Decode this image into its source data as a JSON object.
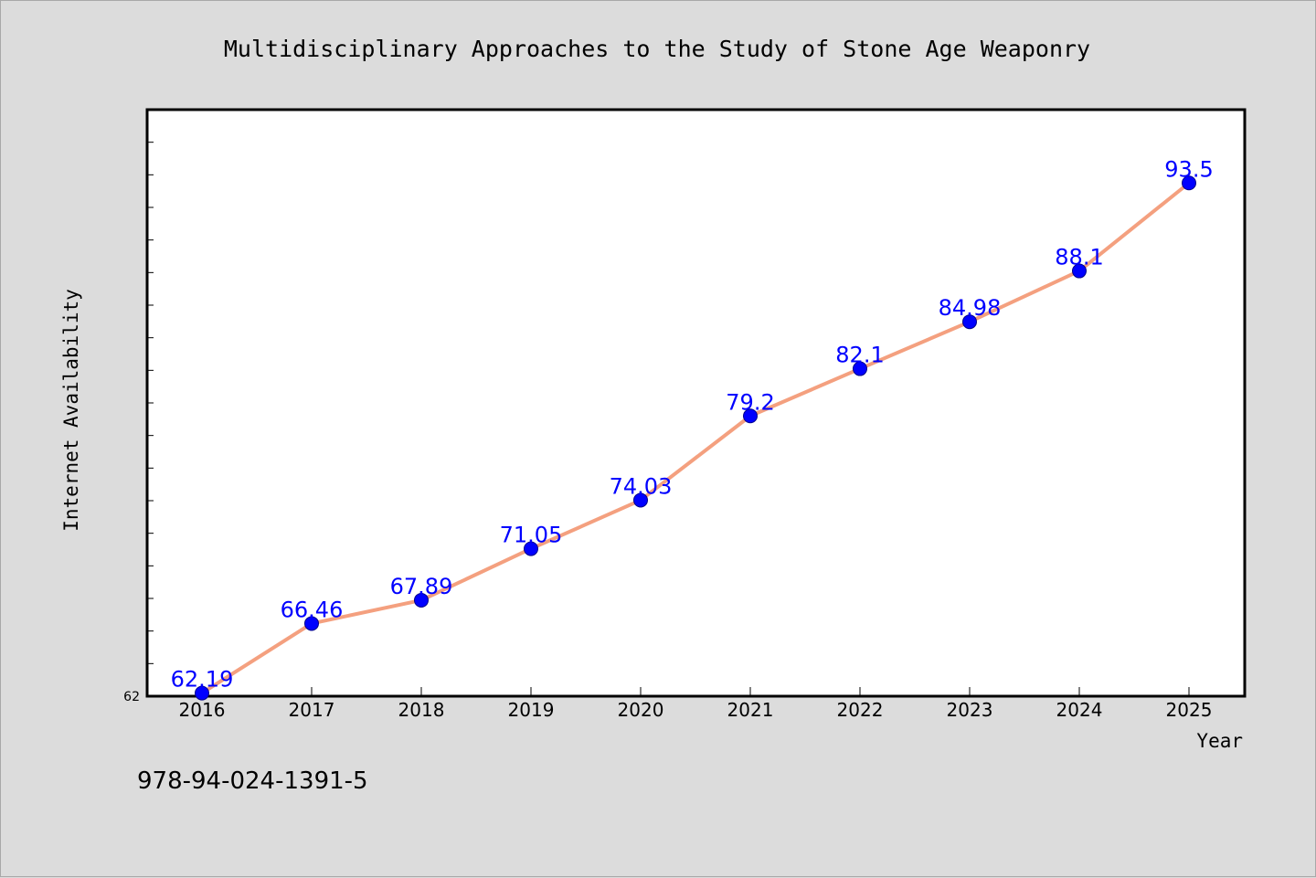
{
  "chart_data": {
    "type": "line",
    "title": "Multidisciplinary Approaches to the Study of Stone Age Weaponry",
    "xlabel": "Year",
    "ylabel": "Internet Availability",
    "x": [
      "2016",
      "2017",
      "2018",
      "2019",
      "2020",
      "2021",
      "2022",
      "2023",
      "2024",
      "2025"
    ],
    "series": [
      {
        "values": [
          62.19,
          66.46,
          67.89,
          71.05,
          74.03,
          79.2,
          82.1,
          84.98,
          88.1,
          93.5
        ],
        "labels": [
          "62.19",
          "66.46",
          "67.89",
          "71.05",
          "74.03",
          "79.2",
          "82.1",
          "84.98",
          "88.1",
          "93.5"
        ]
      }
    ],
    "ylim": [
      62,
      98
    ],
    "yticks": [
      "62"
    ],
    "grid": false,
    "line_color": "#f4a07f",
    "marker_color": "#0000ff",
    "label_color": "#0000ff"
  },
  "footer": {
    "isbn": "978-94-024-1391-5"
  }
}
